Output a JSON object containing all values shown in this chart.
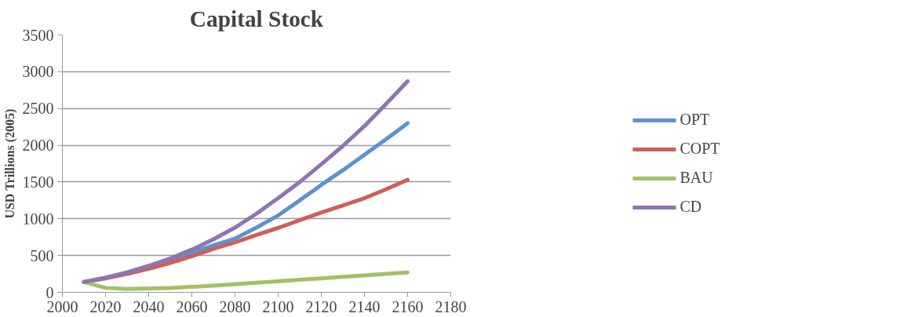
{
  "chart_data": {
    "type": "line",
    "title": "Capital Stock",
    "ylabel": "USD Trillions (2005)",
    "x": [
      2010,
      2020,
      2030,
      2040,
      2050,
      2060,
      2070,
      2080,
      2090,
      2100,
      2110,
      2120,
      2130,
      2140,
      2150,
      2160
    ],
    "series": [
      {
        "name": "OPT",
        "color": "#5b93cf",
        "values": [
          140,
          195,
          260,
          340,
          430,
          540,
          640,
          730,
          880,
          1045,
          1250,
          1460,
          1660,
          1870,
          2080,
          2300
        ]
      },
      {
        "name": "COPT",
        "color": "#cd5f58",
        "values": [
          140,
          190,
          250,
          320,
          400,
          490,
          590,
          680,
          780,
          875,
          980,
          1085,
          1180,
          1280,
          1400,
          1530
        ]
      },
      {
        "name": "BAU",
        "color": "#a3c164",
        "values": [
          140,
          60,
          45,
          50,
          60,
          75,
          90,
          110,
          130,
          150,
          170,
          190,
          210,
          230,
          250,
          270
        ]
      },
      {
        "name": "CD",
        "color": "#8e74b3",
        "values": [
          140,
          200,
          270,
          360,
          460,
          580,
          720,
          880,
          1070,
          1280,
          1500,
          1740,
          1990,
          2260,
          2560,
          2870
        ]
      }
    ],
    "xlim": [
      2000,
      2180
    ],
    "xticks": [
      2000,
      2020,
      2040,
      2060,
      2080,
      2100,
      2120,
      2140,
      2160,
      2180
    ],
    "ylim": [
      0,
      3500
    ],
    "yticks": [
      0,
      500,
      1000,
      1500,
      2000,
      2500,
      3000,
      3500
    ],
    "grid": "y",
    "legend": "right",
    "marker": "none",
    "line_style": "solid"
  }
}
